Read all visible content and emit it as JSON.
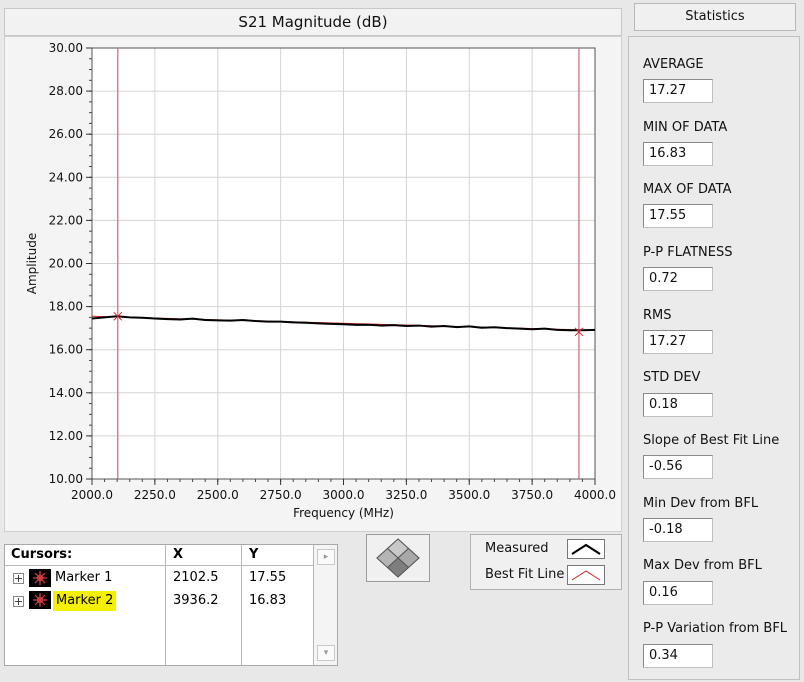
{
  "graph": {
    "title": "S21 Magnitude (dB)",
    "ylabel": "Amplitude",
    "xlabel": "Frequency (MHz)"
  },
  "chart_data": {
    "type": "line",
    "title": "S21 Magnitude (dB)",
    "xlabel": "Frequency (MHz)",
    "ylabel": "Amplitude",
    "xlim": [
      2000,
      4000
    ],
    "ylim": [
      10,
      30
    ],
    "x_ticks": [
      "2000.0",
      "2250.0",
      "2500.0",
      "2750.0",
      "3000.0",
      "3250.0",
      "3500.0",
      "3750.0",
      "4000.0"
    ],
    "y_ticks": [
      "10.00",
      "12.00",
      "14.00",
      "16.00",
      "18.00",
      "20.00",
      "22.00",
      "24.00",
      "26.00",
      "28.00",
      "30.00"
    ],
    "grid": true,
    "colors": {
      "measured": "#000000",
      "best_fit": "#cc2222",
      "cursor": "#cc6677"
    },
    "series": [
      {
        "name": "Measured",
        "x": [
          2000,
          2050,
          2100,
          2150,
          2200,
          2250,
          2300,
          2350,
          2400,
          2450,
          2500,
          2550,
          2600,
          2650,
          2700,
          2750,
          2800,
          2850,
          2900,
          2950,
          3000,
          3050,
          3100,
          3150,
          3200,
          3250,
          3300,
          3350,
          3400,
          3450,
          3500,
          3550,
          3600,
          3650,
          3700,
          3750,
          3800,
          3850,
          3900,
          3950,
          4000
        ],
        "values": [
          17.45,
          17.5,
          17.55,
          17.5,
          17.48,
          17.45,
          17.42,
          17.4,
          17.44,
          17.38,
          17.36,
          17.35,
          17.38,
          17.33,
          17.3,
          17.3,
          17.27,
          17.25,
          17.22,
          17.2,
          17.18,
          17.15,
          17.16,
          17.12,
          17.14,
          17.1,
          17.12,
          17.07,
          17.1,
          17.05,
          17.08,
          17.02,
          17.04,
          17.0,
          16.98,
          16.95,
          16.98,
          16.92,
          16.9,
          16.9,
          16.92
        ]
      },
      {
        "name": "Best Fit Line",
        "x": [
          2000,
          4000
        ],
        "values": [
          17.55,
          16.9
        ]
      }
    ],
    "cursors": [
      {
        "name": "Marker 1",
        "x": 2102.5,
        "y": 17.55
      },
      {
        "name": "Marker 2",
        "x": 3936.2,
        "y": 16.83
      }
    ]
  },
  "cursor_table": {
    "headers": {
      "name": "Cursors:",
      "x": "X",
      "y": "Y"
    },
    "rows": [
      {
        "name": "Marker 1",
        "x": "2102.5",
        "y": "17.55"
      },
      {
        "name": "Marker 2",
        "x": "3936.2",
        "y": "16.83"
      }
    ]
  },
  "legend": {
    "measured": "Measured",
    "best_fit": "Best Fit Line"
  },
  "stats": {
    "header": "Statistics",
    "items": [
      {
        "label": "AVERAGE",
        "value": "17.27"
      },
      {
        "label": "MIN OF DATA",
        "value": "16.83"
      },
      {
        "label": "MAX OF DATA",
        "value": "17.55"
      },
      {
        "label": "P-P FLATNESS",
        "value": "0.72"
      },
      {
        "label": "RMS",
        "value": "17.27"
      },
      {
        "label": "STD DEV",
        "value": "0.18"
      },
      {
        "label": "Slope of Best Fit Line",
        "value": "-0.56"
      },
      {
        "label": "Min Dev from BFL",
        "value": "-0.18"
      },
      {
        "label": "Max Dev from BFL",
        "value": "0.16"
      },
      {
        "label": "P-P Variation from BFL",
        "value": "0.34"
      }
    ]
  }
}
